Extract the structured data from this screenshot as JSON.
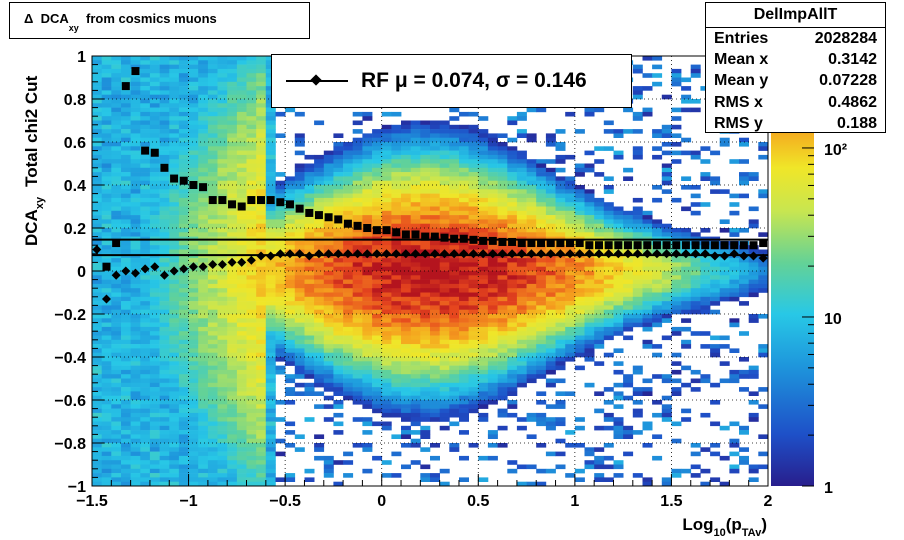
{
  "title": {
    "prefix": "Δ",
    "main": "DCA",
    "sub": "xy",
    "rest": "from cosmics muons"
  },
  "stats": {
    "name": "DelImpAllT",
    "rows": [
      {
        "label": "Entries",
        "value": "2028284"
      },
      {
        "label": "Mean x",
        "value": "0.3142"
      },
      {
        "label": "Mean y",
        "value": "0.07228"
      },
      {
        "label": "RMS x",
        "value": "0.4862"
      },
      {
        "label": "RMS y",
        "value": "0.188"
      }
    ]
  },
  "legend": {
    "text": "RF μ =  0.074, σ =   0.146"
  },
  "axes": {
    "xlabel_main": "Log",
    "xlabel_sub1": "10",
    "xlabel_mid": "(p",
    "xlabel_sub2": "TAv",
    "xlabel_end": ")",
    "ylabel_main": "DCA",
    "ylabel_sub": "xy",
    "ylabel_rest": "Total chi2 Cut"
  },
  "chart_data": {
    "type": "heatmap",
    "title": "Δ DCAxy from cosmics muons",
    "xlabel": "Log10(pTAv)",
    "ylabel": "DCAxy   Total chi2 Cut",
    "xlim": [
      -1.5,
      2
    ],
    "ylim": [
      -1,
      1
    ],
    "x_ticks": [
      -1.5,
      -1,
      -0.5,
      0,
      0.5,
      1,
      1.5,
      2
    ],
    "y_ticks": [
      -1,
      -0.8,
      -0.6,
      -0.4,
      -0.2,
      0,
      0.2,
      0.4,
      0.6,
      0.8,
      1
    ],
    "x_tick_labels": [
      "−1.5",
      "−1",
      "−0.5",
      "0",
      "0.5",
      "1",
      "1.5",
      "2"
    ],
    "y_tick_labels": [
      "−1",
      "−0.8",
      "−0.6",
      "−0.4",
      "−0.2",
      "0",
      "0.2",
      "0.4",
      "0.6",
      "0.8",
      "1"
    ],
    "colorbar": {
      "scale": "log",
      "range": [
        1,
        350
      ],
      "tick_labels": [
        "1",
        "10",
        "10²"
      ],
      "tick_values": [
        1,
        10,
        100
      ]
    },
    "density_peak": {
      "x": 0.3,
      "y": 0.0
    },
    "mean_series": {
      "name": "RF",
      "x": [
        -1.475,
        -1.425,
        -1.375,
        -1.325,
        -1.275,
        -1.225,
        -1.175,
        -1.125,
        -1.075,
        -1.025,
        -0.975,
        -0.925,
        -0.875,
        -0.825,
        -0.775,
        -0.725,
        -0.675,
        -0.625,
        -0.575,
        -0.525,
        -0.475,
        -0.425,
        -0.375,
        -0.325,
        -0.275,
        -0.225,
        -0.175,
        -0.125,
        -0.075,
        -0.025,
        0.025,
        0.075,
        0.125,
        0.175,
        0.225,
        0.275,
        0.325,
        0.375,
        0.425,
        0.475,
        0.525,
        0.575,
        0.625,
        0.675,
        0.725,
        0.775,
        0.825,
        0.875,
        0.925,
        0.975,
        1.025,
        1.075,
        1.125,
        1.175,
        1.225,
        1.275,
        1.325,
        1.375,
        1.425,
        1.475,
        1.525,
        1.575,
        1.625,
        1.675,
        1.725,
        1.775,
        1.825,
        1.875,
        1.925,
        1.975
      ],
      "y": [
        0.1,
        -0.13,
        -0.02,
        0.0,
        -0.01,
        0.01,
        0.02,
        -0.02,
        0.0,
        0.01,
        0.02,
        0.02,
        0.03,
        0.03,
        0.04,
        0.04,
        0.05,
        0.07,
        0.07,
        0.08,
        0.08,
        0.08,
        0.07,
        0.08,
        0.08,
        0.08,
        0.08,
        0.08,
        0.08,
        0.08,
        0.08,
        0.08,
        0.08,
        0.08,
        0.08,
        0.08,
        0.08,
        0.08,
        0.08,
        0.08,
        0.08,
        0.08,
        0.08,
        0.08,
        0.08,
        0.08,
        0.08,
        0.08,
        0.08,
        0.08,
        0.08,
        0.08,
        0.08,
        0.08,
        0.08,
        0.08,
        0.08,
        0.08,
        0.08,
        0.08,
        0.08,
        0.08,
        0.08,
        0.08,
        0.07,
        0.07,
        0.08,
        0.07,
        0.07,
        0.06
      ]
    },
    "rms_series": {
      "name": "RMS",
      "x": [
        -1.425,
        -1.375,
        -1.325,
        -1.275,
        -1.225,
        -1.175,
        -1.125,
        -1.075,
        -1.025,
        -0.975,
        -0.925,
        -0.875,
        -0.825,
        -0.775,
        -0.725,
        -0.675,
        -0.625,
        -0.575,
        -0.525,
        -0.475,
        -0.425,
        -0.375,
        -0.325,
        -0.275,
        -0.225,
        -0.175,
        -0.125,
        -0.075,
        -0.025,
        0.025,
        0.075,
        0.125,
        0.175,
        0.225,
        0.275,
        0.325,
        0.375,
        0.425,
        0.475,
        0.525,
        0.575,
        0.625,
        0.675,
        0.725,
        0.775,
        0.825,
        0.875,
        0.925,
        0.975,
        1.025,
        1.075,
        1.125,
        1.175,
        1.225,
        1.275,
        1.325,
        1.375,
        1.425,
        1.475,
        1.525,
        1.575,
        1.625,
        1.675,
        1.725,
        1.775,
        1.825,
        1.875,
        1.925,
        1.975
      ],
      "y": [
        0.02,
        0.13,
        0.86,
        0.93,
        0.56,
        0.55,
        0.48,
        0.43,
        0.42,
        0.4,
        0.39,
        0.33,
        0.33,
        0.31,
        0.3,
        0.33,
        0.33,
        0.33,
        0.32,
        0.31,
        0.29,
        0.27,
        0.26,
        0.25,
        0.24,
        0.22,
        0.21,
        0.2,
        0.19,
        0.19,
        0.18,
        0.17,
        0.17,
        0.16,
        0.16,
        0.155,
        0.15,
        0.15,
        0.145,
        0.14,
        0.14,
        0.135,
        0.135,
        0.13,
        0.13,
        0.13,
        0.13,
        0.13,
        0.13,
        0.13,
        0.12,
        0.12,
        0.12,
        0.12,
        0.12,
        0.12,
        0.12,
        0.12,
        0.12,
        0.12,
        0.12,
        0.12,
        0.12,
        0.12,
        0.12,
        0.12,
        0.12,
        0.12,
        0.13
      ]
    },
    "fit_lines": [
      {
        "name": "μ",
        "y": 0.074
      },
      {
        "name": "σ",
        "y": 0.146
      }
    ],
    "grid": true,
    "legend_position": "top"
  }
}
